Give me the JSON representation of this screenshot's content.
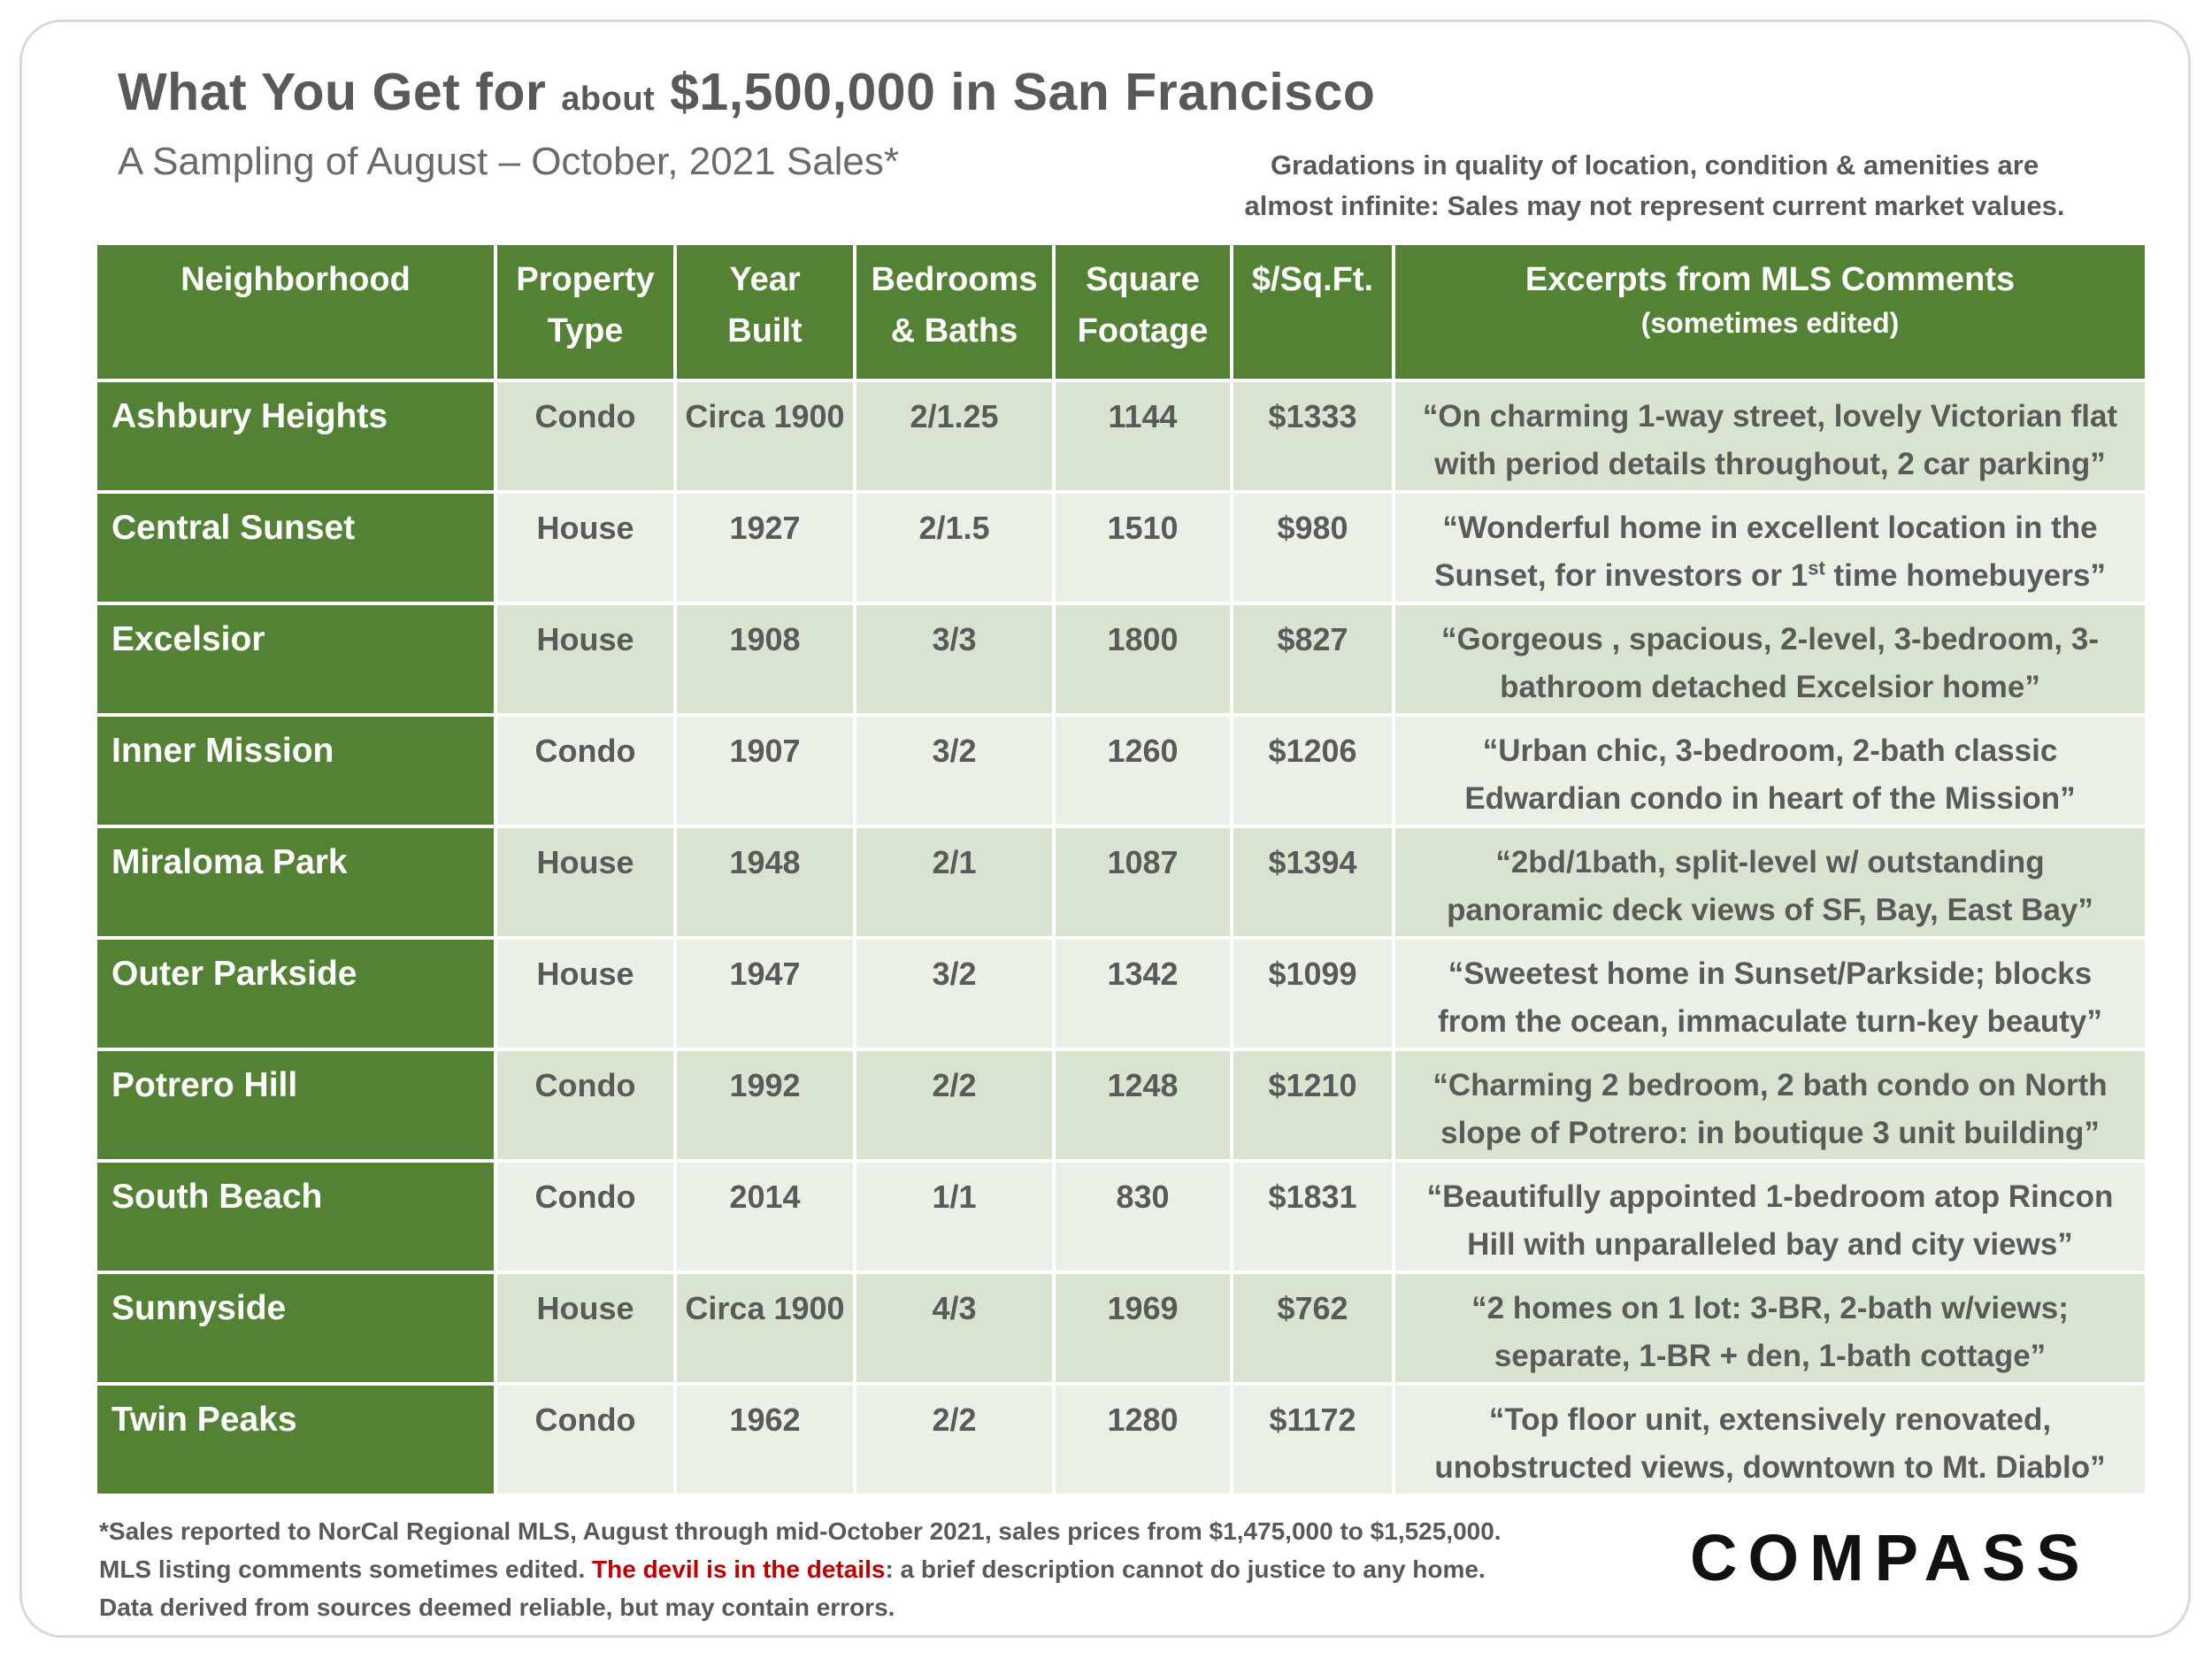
{
  "title": {
    "part1": "What You Get for",
    "part2": "about",
    "part3": "$1,500,000 in San Francisco"
  },
  "subtitle": "A Sampling of August – October, 2021 Sales*",
  "note": {
    "line1": "Gradations in quality of location, condition & amenities are",
    "line2": "almost infinite: Sales may not represent current market values."
  },
  "table": {
    "headers": {
      "neighborhood": "Neighborhood",
      "property_type_1": "Property",
      "property_type_2": "Type",
      "year_built_1": "Year",
      "year_built_2": "Built",
      "bedrooms_1": "Bedrooms",
      "bedrooms_2": "& Baths",
      "square_1": "Square",
      "square_2": "Footage",
      "price_sqft": "$/Sq.Ft.",
      "comments": "Excerpts from MLS Comments",
      "comments_sub": "(sometimes edited)"
    },
    "rows": [
      {
        "neighborhood": "Ashbury Heights",
        "type": "Condo",
        "year": "Circa 1900",
        "beds": "2/1.25",
        "sqft": "1144",
        "price": "$1333",
        "comment_1": "“On charming 1-way street, lovely Victorian flat",
        "comment_2": "with period details throughout, 2 car parking”"
      },
      {
        "neighborhood": "Central Sunset",
        "type": "House",
        "year": "1927",
        "beds": "2/1.5",
        "sqft": "1510",
        "price": "$980",
        "comment_1": "“Wonderful home in excellent location in the",
        "comment_2a": "Sunset, for investors or 1",
        "comment_2sup": "st",
        "comment_2b": " time homebuyers”"
      },
      {
        "neighborhood": "Excelsior",
        "type": "House",
        "year": "1908",
        "beds": "3/3",
        "sqft": "1800",
        "price": "$827",
        "comment_1": "“Gorgeous , spacious, 2-level, 3-bedroom, 3-",
        "comment_2": "bathroom detached Excelsior home”"
      },
      {
        "neighborhood": "Inner Mission",
        "type": "Condo",
        "year": "1907",
        "beds": "3/2",
        "sqft": "1260",
        "price": "$1206",
        "comment_1": "“Urban chic, 3-bedroom, 2-bath classic",
        "comment_2": "Edwardian condo in heart of the Mission”"
      },
      {
        "neighborhood": "Miraloma Park",
        "type": "House",
        "year": "1948",
        "beds": "2/1",
        "sqft": "1087",
        "price": "$1394",
        "comment_1": "“2bd/1bath, split-level w/ outstanding",
        "comment_2": "panoramic deck views of SF, Bay, East Bay”"
      },
      {
        "neighborhood": "Outer Parkside",
        "type": "House",
        "year": "1947",
        "beds": "3/2",
        "sqft": "1342",
        "price": "$1099",
        "comment_1": "“Sweetest home in Sunset/Parkside; blocks",
        "comment_2": "from the ocean, immaculate turn-key beauty”"
      },
      {
        "neighborhood": "Potrero Hill",
        "type": "Condo",
        "year": "1992",
        "beds": "2/2",
        "sqft": "1248",
        "price": "$1210",
        "comment_1": "“Charming 2 bedroom, 2 bath condo on North",
        "comment_2": "slope of Potrero: in boutique 3 unit building”"
      },
      {
        "neighborhood": "South Beach",
        "type": "Condo",
        "year": "2014",
        "beds": "1/1",
        "sqft": "830",
        "price": "$1831",
        "comment_1": "“Beautifully appointed 1-bedroom atop Rincon",
        "comment_2": "Hill with unparalleled bay and city views”"
      },
      {
        "neighborhood": "Sunnyside",
        "type": "House",
        "year": "Circa 1900",
        "beds": "4/3",
        "sqft": "1969",
        "price": "$762",
        "comment_1": "“2 homes on 1 lot: 3-BR, 2-bath w/views;",
        "comment_2": "separate, 1-BR + den, 1-bath cottage”"
      },
      {
        "neighborhood": "Twin Peaks",
        "type": "Condo",
        "year": "1962",
        "beds": "2/2",
        "sqft": "1280",
        "price": "$1172",
        "comment_1": "“Top floor unit, extensively renovated,",
        "comment_2": "unobstructed views, downtown to Mt. Diablo”"
      }
    ]
  },
  "footer": {
    "line1": "*Sales reported to NorCal Regional MLS, August through mid-October 2021, sales prices from $1,475,000 to $1,525,000.",
    "line2_a": "MLS listing comments sometimes edited. ",
    "line2_red": "The devil is in the details",
    "line2_b": ": a brief description cannot do justice to any home.",
    "line3": "Data derived from sources deemed reliable, but may contain errors."
  },
  "logo": "COMPASS",
  "colors": {
    "header_green": "#548235",
    "row_light": "#d8e4cf",
    "row_lighter": "#ebf0e7",
    "text_gray": "#595959",
    "accent_red": "#c00000"
  }
}
